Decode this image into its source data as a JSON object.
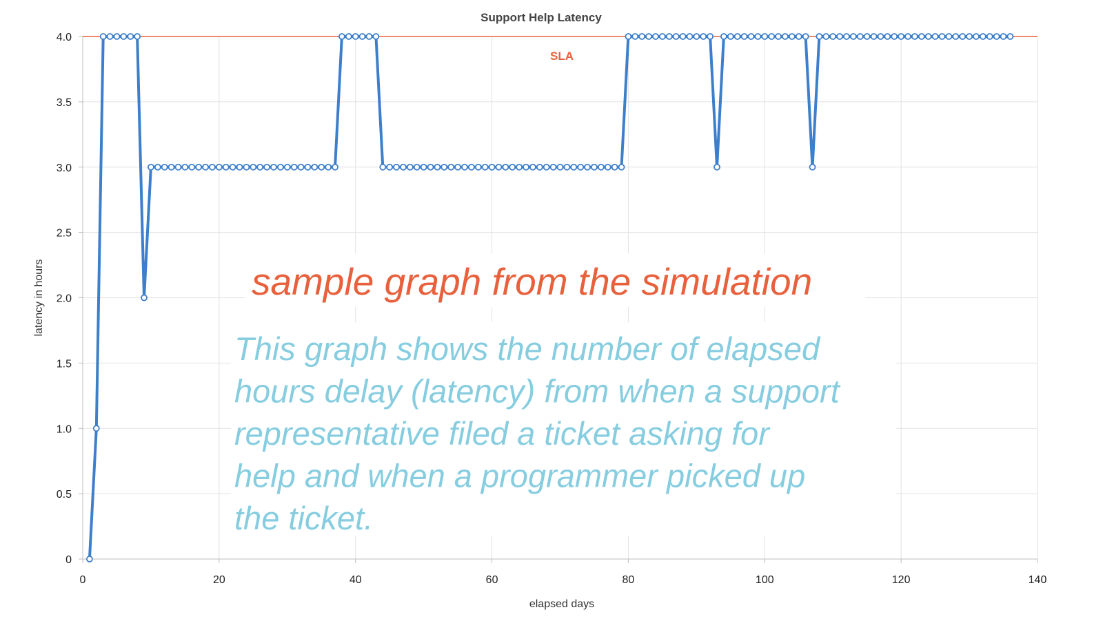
{
  "chart_data": {
    "type": "line",
    "title": "Support Help Latency",
    "xlabel": "elapsed days",
    "ylabel": "latency in hours",
    "xlim": [
      0,
      140
    ],
    "ylim": [
      0,
      4.0
    ],
    "x_ticks": [
      "0",
      "20",
      "40",
      "60",
      "80",
      "100",
      "120",
      "140"
    ],
    "y_ticks": [
      "0",
      "0.5",
      "1.0",
      "1.5",
      "2.0",
      "2.5",
      "3.0",
      "3.5",
      "4.0"
    ],
    "grid": true,
    "legend": "none",
    "series": [
      {
        "color": "#3d7fcb",
        "x": [
          1,
          2,
          3,
          4,
          5,
          6,
          7,
          8,
          9,
          10,
          11,
          12,
          13,
          14,
          15,
          16,
          17,
          18,
          19,
          20,
          21,
          22,
          23,
          24,
          25,
          26,
          27,
          28,
          29,
          30,
          31,
          32,
          33,
          34,
          35,
          36,
          37,
          38,
          39,
          40,
          41,
          42,
          43,
          44,
          45,
          46,
          47,
          48,
          49,
          50,
          51,
          52,
          53,
          54,
          55,
          56,
          57,
          58,
          59,
          60,
          61,
          62,
          63,
          64,
          65,
          66,
          67,
          68,
          69,
          70,
          71,
          72,
          73,
          74,
          75,
          76,
          77,
          78,
          79,
          80,
          81,
          82,
          83,
          84,
          85,
          86,
          87,
          88,
          89,
          90,
          91,
          92,
          93,
          94,
          95,
          96,
          97,
          98,
          99,
          100,
          101,
          102,
          103,
          104,
          105,
          106,
          107,
          108,
          109,
          110,
          111,
          112,
          113,
          114,
          115,
          116,
          117,
          118,
          119,
          120,
          121,
          122,
          123,
          124,
          125,
          126,
          127,
          128,
          129,
          130,
          131,
          132,
          133,
          134,
          135,
          136
        ],
        "y": [
          0,
          1,
          4,
          4,
          4,
          4,
          4,
          4,
          2,
          3,
          3,
          3,
          3,
          3,
          3,
          3,
          3,
          3,
          3,
          3,
          3,
          3,
          3,
          3,
          3,
          3,
          3,
          3,
          3,
          3,
          3,
          3,
          3,
          3,
          3,
          3,
          3,
          4,
          4,
          4,
          4,
          4,
          4,
          3,
          3,
          3,
          3,
          3,
          3,
          3,
          3,
          3,
          3,
          3,
          3,
          3,
          3,
          3,
          3,
          3,
          3,
          3,
          3,
          3,
          3,
          3,
          3,
          3,
          3,
          3,
          3,
          3,
          3,
          3,
          3,
          3,
          3,
          3,
          3,
          4,
          4,
          4,
          4,
          4,
          4,
          4,
          4,
          4,
          4,
          4,
          4,
          4,
          3,
          4,
          4,
          4,
          4,
          4,
          4,
          4,
          4,
          4,
          4,
          4,
          4,
          4,
          3,
          4,
          4,
          4,
          4,
          4,
          4,
          4,
          4,
          4,
          4,
          4,
          4,
          4,
          4,
          4,
          4,
          4,
          4,
          4,
          4,
          4,
          4,
          4,
          4,
          4,
          4,
          4,
          4,
          4
        ]
      }
    ],
    "reference_line": {
      "label": "SLA",
      "y": 4.0,
      "color": "#e8613c"
    },
    "annotations": {
      "heading": "sample graph from the simulation",
      "heading_color": "#e8613c",
      "body_lines": [
        "This graph shows the number of elapsed",
        "hours delay (latency) from when a support",
        "representative filed a ticket asking for",
        "help and when a programmer picked up",
        "the ticket."
      ],
      "body_color": "#86cde0"
    }
  }
}
